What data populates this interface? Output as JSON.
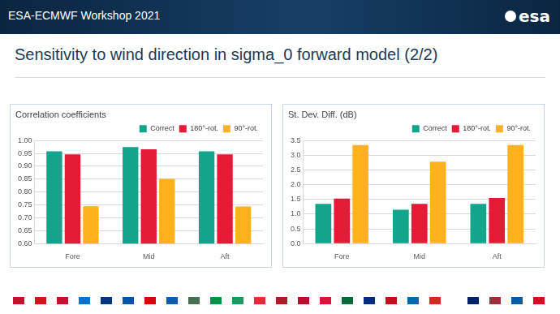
{
  "header": {
    "text": "ESA-ECMWF Workshop 2021",
    "logo": "esa"
  },
  "title": "Sensitivity to wind direction in sigma_0 forward model (2/2)",
  "chart_data": [
    {
      "type": "bar",
      "title": "Correlation coefficients",
      "categories": [
        "Fore",
        "Mid",
        "Aft"
      ],
      "series": [
        {
          "name": "Correct",
          "color": "#12a58c",
          "values": [
            0.958,
            0.975,
            0.958
          ]
        },
        {
          "name": "180°-rot.",
          "color": "#e31b37",
          "values": [
            0.946,
            0.966,
            0.946
          ]
        },
        {
          "name": "90°-rot.",
          "color": "#ffb21d",
          "values": [
            0.745,
            0.851,
            0.744
          ]
        }
      ],
      "ylim": [
        0.6,
        1.0
      ],
      "yticks": [
        {
          "value": 0.6,
          "label": "0.60"
        },
        {
          "value": 0.65,
          "label": "0.65"
        },
        {
          "value": 0.7,
          "label": "0.70"
        },
        {
          "value": 0.75,
          "label": "0.75"
        },
        {
          "value": 0.8,
          "label": "0.80"
        },
        {
          "value": 0.85,
          "label": "0.85"
        },
        {
          "value": 0.9,
          "label": "0.90"
        },
        {
          "value": 0.95,
          "label": "0.95"
        },
        {
          "value": 1.0,
          "label": "1.00"
        }
      ],
      "grid": true,
      "legend": "top-right"
    },
    {
      "type": "bar",
      "title": "St. Dev. Diff. (dB)",
      "categories": [
        "Fore",
        "Mid",
        "Aft"
      ],
      "series": [
        {
          "name": "Correct",
          "color": "#12a58c",
          "values": [
            1.35,
            1.15,
            1.35
          ]
        },
        {
          "name": "180°-rot.",
          "color": "#e31b37",
          "values": [
            1.53,
            1.35,
            1.55
          ]
        },
        {
          "name": "90°-rot.",
          "color": "#ffb21d",
          "values": [
            3.35,
            2.78,
            3.35
          ]
        }
      ],
      "ylim": [
        0.0,
        3.5
      ],
      "yticks": [
        {
          "value": 0,
          "label": "0.0"
        },
        {
          "value": 0.5,
          "label": "0.5"
        },
        {
          "value": 1,
          "label": "1.0"
        },
        {
          "value": 1.5,
          "label": "1.5"
        },
        {
          "value": 2,
          "label": "2.0"
        },
        {
          "value": 2.5,
          "label": "2.5"
        },
        {
          "value": 3,
          "label": "3.0"
        },
        {
          "value": 3.5,
          "label": "3.5"
        }
      ],
      "grid": true,
      "legend": "top-right"
    }
  ]
}
